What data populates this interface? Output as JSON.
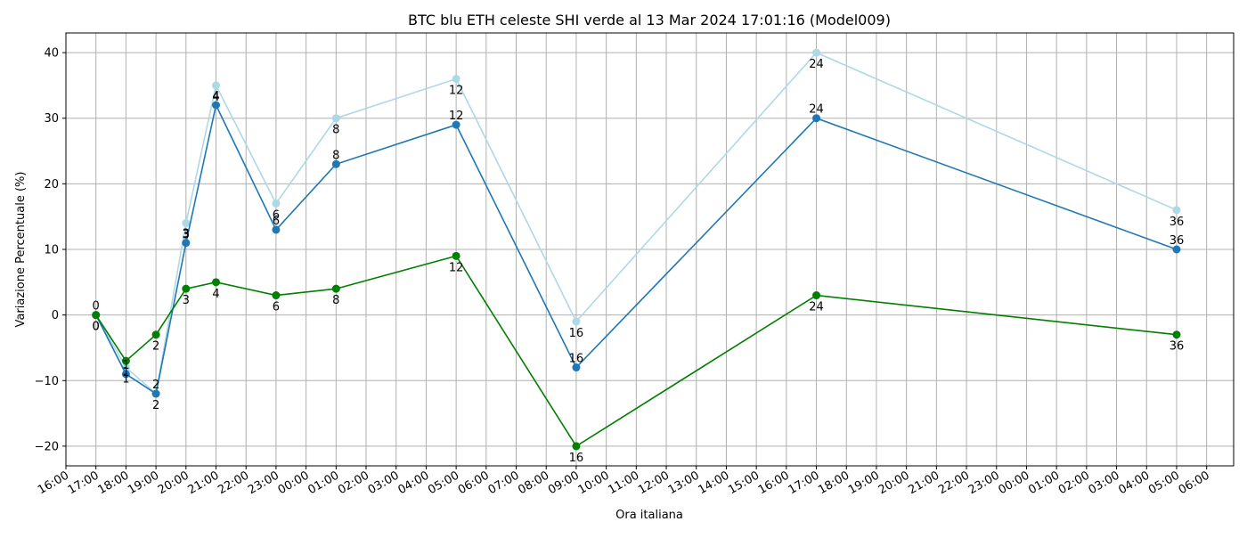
{
  "chart_data": {
    "type": "line",
    "title": "BTC blu ETH celeste SHI verde al 13 Mar 2024 17:01:16 (Model009)",
    "xlabel": "Ora italiana",
    "ylabel": "Variazione Percentuale (%)",
    "xlim": [
      -1,
      37.9
    ],
    "ylim": [
      -23,
      43
    ],
    "grid": true,
    "yticks": [
      -20,
      -10,
      0,
      10,
      20,
      30,
      40
    ],
    "xticks": [
      "16:00",
      "17:00",
      "18:00",
      "19:00",
      "20:00",
      "21:00",
      "22:00",
      "23:00",
      "00:00",
      "01:00",
      "02:00",
      "03:00",
      "04:00",
      "05:00",
      "06:00",
      "07:00",
      "08:00",
      "09:00",
      "10:00",
      "11:00",
      "12:00",
      "13:00",
      "14:00",
      "15:00",
      "16:00",
      "17:00",
      "18:00",
      "19:00",
      "20:00",
      "21:00",
      "22:00",
      "23:00",
      "00:00",
      "01:00",
      "02:00",
      "03:00",
      "04:00",
      "05:00",
      "06:00"
    ],
    "x": [
      0,
      1,
      2,
      3,
      4,
      6,
      8,
      12,
      16,
      24,
      36
    ],
    "x_time_labels": [
      "17:00",
      "18:00",
      "19:00",
      "20:00",
      "21:00",
      "23:00",
      "01:00",
      "05:00",
      "09:00",
      "17:00",
      "05:00"
    ],
    "point_labels": [
      "0",
      "1",
      "2",
      "3",
      "4",
      "6",
      "8",
      "12",
      "16",
      "24",
      "36"
    ],
    "series": [
      {
        "color": "#add8e6",
        "values": [
          0,
          -8,
          -12,
          14,
          35,
          17,
          30,
          36,
          -1,
          40,
          16
        ],
        "label_pos": "below"
      },
      {
        "color": "#1f77b4",
        "values": [
          0,
          -9,
          -12,
          11,
          32,
          13,
          23,
          29,
          -8,
          30,
          10
        ],
        "label_pos": "above"
      },
      {
        "color": "#008000",
        "values": [
          0,
          -7,
          -3,
          4,
          5,
          3,
          4,
          9,
          -20,
          3,
          -3
        ],
        "label_pos": "below"
      }
    ]
  }
}
